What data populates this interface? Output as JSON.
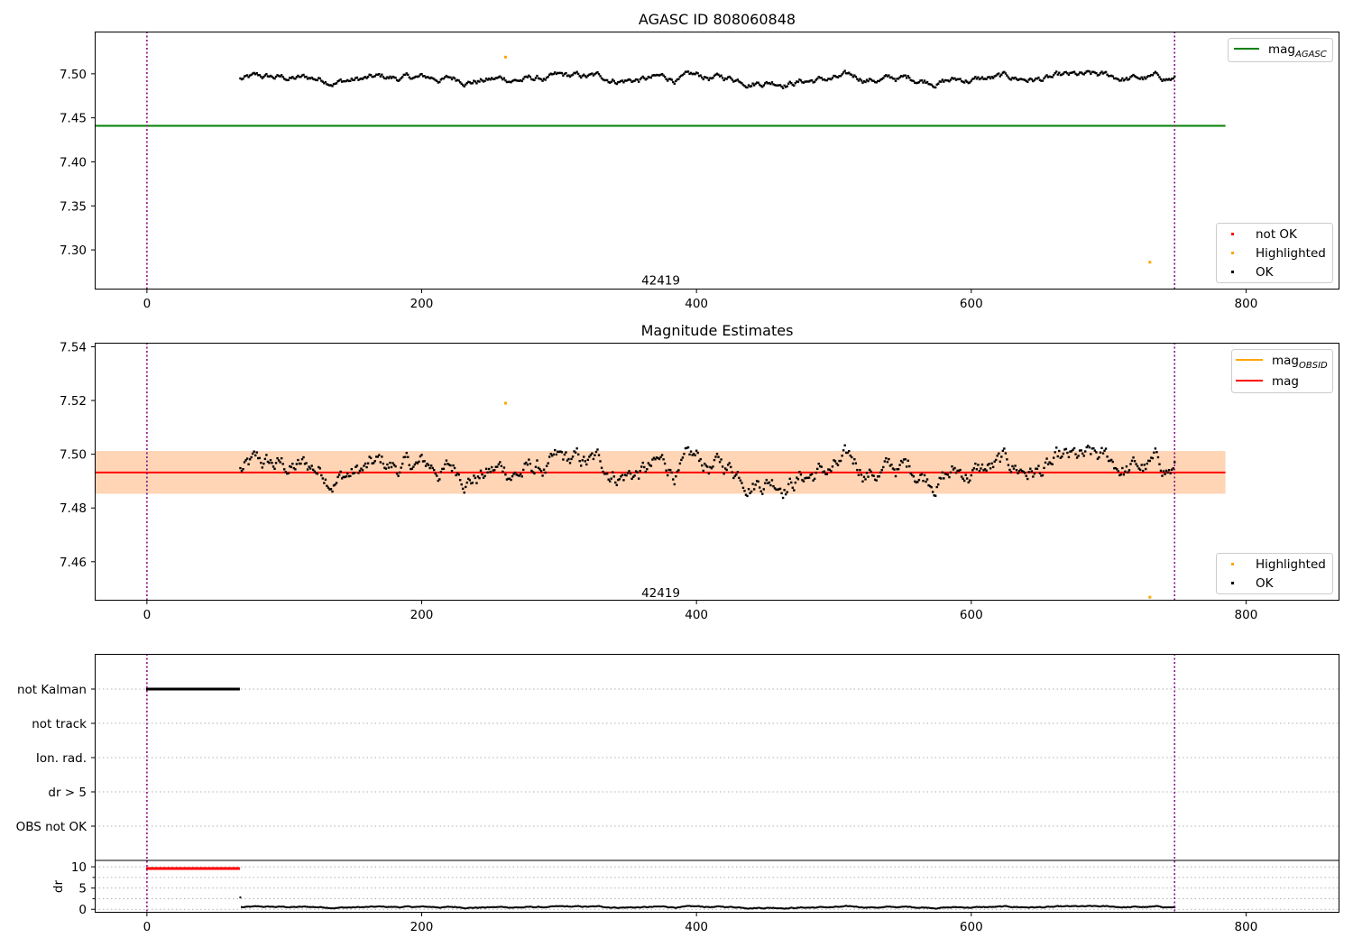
{
  "chart_data": [
    {
      "type": "scatter",
      "title": "AGASC ID 808060848",
      "xlim": [
        -38,
        868
      ],
      "ylim": [
        7.255,
        7.548
      ],
      "xticks": [
        0,
        200,
        400,
        600,
        800
      ],
      "yticks": [
        7.3,
        7.35,
        7.4,
        7.45,
        7.5
      ],
      "ytick_labels": [
        "7.30",
        "7.35",
        "7.40",
        "7.45",
        "7.50"
      ],
      "vlines_x": [
        0,
        748
      ],
      "hline": {
        "y": 7.441,
        "x_range": [
          -38,
          785
        ],
        "color": "#008000"
      },
      "annotation": {
        "text": "42419",
        "x": 374,
        "y": 7.266
      },
      "base_mag": 7.494,
      "noise_amp": 0.006,
      "x_range": [
        68,
        748
      ],
      "highlighted_points": [
        {
          "x": 261,
          "y": 7.519
        },
        {
          "x": 730,
          "y": 7.286
        }
      ],
      "legend_top": [
        {
          "label": "mag",
          "sub": "AGASC",
          "color": "#008000"
        }
      ],
      "legend_bottom": [
        {
          "label": "not OK",
          "color": "#ff0000"
        },
        {
          "label": "Highlighted",
          "color": "#ffa500"
        },
        {
          "label": "OK",
          "color": "#000000"
        }
      ]
    },
    {
      "type": "scatter",
      "title": "Magnitude Estimates",
      "xlim": [
        -38,
        868
      ],
      "ylim": [
        7.4455,
        7.5415
      ],
      "xticks": [
        0,
        200,
        400,
        600,
        800
      ],
      "yticks": [
        7.46,
        7.48,
        7.5,
        7.52,
        7.54
      ],
      "ytick_labels": [
        "7.46",
        "7.48",
        "7.50",
        "7.52",
        "7.54"
      ],
      "vlines_x": [
        0,
        748
      ],
      "mag_line": {
        "y": 7.4932,
        "x_range": [
          -38,
          785
        ],
        "color": "#ff0000"
      },
      "mag_band": {
        "y_low": 7.4853,
        "y_high": 7.5012,
        "color": "#ffc0cb"
      },
      "obsid_band": {
        "y_low": 7.4853,
        "y_high": 7.5012,
        "color": "#ffa500"
      },
      "annotation": {
        "text": "42419",
        "x": 374,
        "y": 7.4485
      },
      "base_mag": 7.494,
      "noise_amp": 0.006,
      "x_range": [
        68,
        748
      ],
      "highlighted_points": [
        {
          "x": 261,
          "y": 7.519
        },
        {
          "x": 730,
          "y": 7.4468
        }
      ],
      "legend_top": [
        {
          "label": "mag",
          "sub": "OBSID",
          "color": "#ffa500"
        },
        {
          "label": "mag",
          "sub": "",
          "color": "#ff0000"
        }
      ],
      "legend_bottom": [
        {
          "label": "Highlighted",
          "color": "#ffa500"
        },
        {
          "label": "OK",
          "color": "#000000"
        }
      ]
    },
    {
      "type": "scatter",
      "title": "",
      "xlim": [
        -38,
        868
      ],
      "xticks": [
        0,
        200,
        400,
        600,
        800
      ],
      "vlines_x": [
        0,
        748
      ],
      "flag_categories": [
        "not Kalman",
        "not track",
        "Ion. rad.",
        "dr > 5",
        "OBS not OK"
      ],
      "flag_ranges": [
        {
          "category": "not Kalman",
          "x_start": 0,
          "x_end": 67
        }
      ],
      "dr": {
        "ylabel": "dr",
        "ylim": [
          -0.8,
          11.5
        ],
        "yticks": [
          0,
          5,
          10
        ],
        "ytick_labels": [
          "0",
          "5",
          "10"
        ],
        "gridlines": [
          0,
          2.5,
          5,
          7.5,
          10
        ],
        "clipped_value": 9.6,
        "clipped_range": [
          0,
          67
        ],
        "base": 0.4,
        "first_point": {
          "x": 68,
          "y": 2.8
        }
      }
    }
  ]
}
